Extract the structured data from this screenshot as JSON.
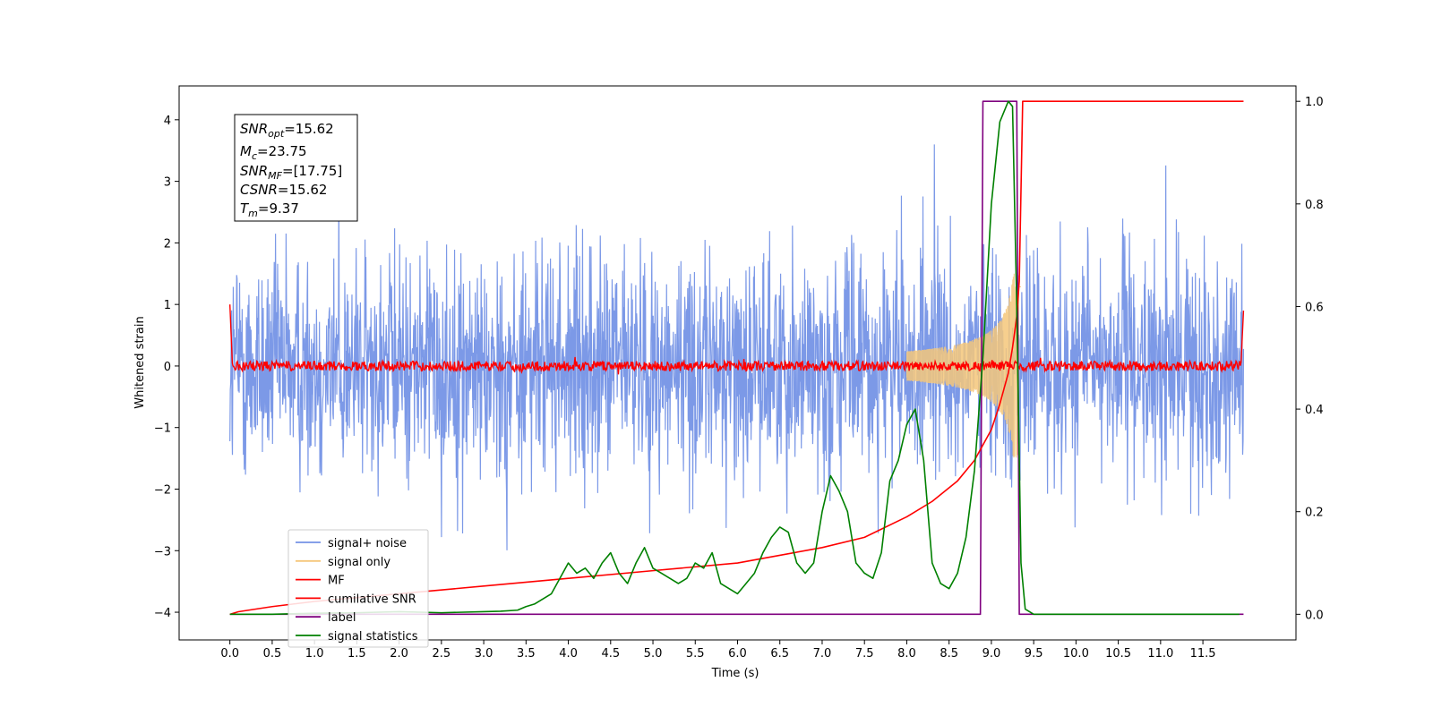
{
  "chart_data": {
    "type": "line",
    "xlabel": "Time (s)",
    "ylabel": "Whitened strain",
    "xlim": [
      -0.6,
      12.6
    ],
    "ylim": [
      -4.45,
      4.55
    ],
    "ylim_right": [
      -0.05,
      1.03
    ],
    "x_ticks": [
      0.0,
      0.5,
      1.0,
      1.5,
      2.0,
      2.5,
      3.0,
      3.5,
      4.0,
      4.5,
      5.0,
      5.5,
      6.0,
      6.5,
      7.0,
      7.5,
      8.0,
      8.5,
      9.0,
      9.5,
      10.0,
      10.5,
      11.0,
      11.5
    ],
    "x_tick_labels": [
      "0.0",
      "0.5",
      "1.0",
      "1.5",
      "2.0",
      "2.5",
      "3.0",
      "3.5",
      "4.0",
      "4.5",
      "5.0",
      "5.5",
      "6.0",
      "6.5",
      "7.0",
      "7.5",
      "8.0",
      "8.5",
      "9.0",
      "9.5",
      "10.0",
      "10.5",
      "11.0",
      "11.5"
    ],
    "y_ticks": [
      4,
      3,
      2,
      1,
      0,
      -1,
      -2,
      -3,
      -4
    ],
    "y_tick_labels": [
      "4",
      "3",
      "2",
      "1",
      "0",
      "−1",
      "−2",
      "−3",
      "−4"
    ],
    "y_right_ticks": [
      1.0,
      0.8,
      0.6,
      0.4,
      0.2,
      0.0
    ],
    "y_right_tick_labels": [
      "1.0",
      "0.8",
      "0.6",
      "0.4",
      "0.2",
      "0.0"
    ],
    "grid": false,
    "legend_position": "bottom-left",
    "info_box": {
      "snr_opt": {
        "base": "SNR",
        "sub": "opt",
        "value": "=15.62"
      },
      "mc": {
        "base": "M",
        "sub": "c",
        "value": "=23.75"
      },
      "snr_mf": {
        "base": "SNR",
        "sub": "MF",
        "value": "=[17.75]"
      },
      "csnr": {
        "base": "CSNR",
        "value": "=15.62"
      },
      "tm": {
        "base": "T",
        "sub": "m",
        "value": "=9.37"
      }
    },
    "series": [
      {
        "name": "signal+ noise",
        "color": "#7593e6",
        "axis": "left",
        "description_level": "noise amplitude about ±2.5, range ≈ −3.5..4.0",
        "merger_time": 9.37
      },
      {
        "name": "signal only",
        "color": "#f5c77a",
        "axis": "left",
        "chirp_start": 8.0,
        "chirp_peak_time": 9.3,
        "peak_amplitude": 1.5
      },
      {
        "name": "MF",
        "color": "#ff0000",
        "axis": "left",
        "baseline": 0.0,
        "edge_value_start": 1.0,
        "edge_value_end": 0.9
      },
      {
        "name": "cumilative SNR",
        "color": "#ff0000",
        "axis": "right",
        "x": [
          0.0,
          0.1,
          0.5,
          1.0,
          2.0,
          3.0,
          4.0,
          5.0,
          6.0,
          6.5,
          7.0,
          7.5,
          8.0,
          8.3,
          8.6,
          8.8,
          9.0,
          9.1,
          9.2,
          9.25,
          9.3,
          9.33,
          9.37,
          9.5,
          11.98
        ],
        "values": [
          0.0,
          0.005,
          0.015,
          0.025,
          0.04,
          0.055,
          0.07,
          0.085,
          0.1,
          0.115,
          0.13,
          0.15,
          0.19,
          0.22,
          0.26,
          0.3,
          0.36,
          0.41,
          0.47,
          0.52,
          0.58,
          0.65,
          1.0,
          1.0,
          1.0
        ]
      },
      {
        "name": "label",
        "color": "#7f007f",
        "axis": "right",
        "x": [
          0.0,
          5.69,
          5.7,
          5.71,
          8.87,
          8.9,
          9.3,
          9.33,
          11.98
        ],
        "values": [
          0.0,
          0.0,
          0.0,
          0.0,
          0.0,
          1.0,
          1.0,
          0.0,
          0.0
        ]
      },
      {
        "name": "signal statistics",
        "color": "#008000",
        "axis": "right",
        "x": [
          0.0,
          0.5,
          1.0,
          1.5,
          2.0,
          2.5,
          3.0,
          3.2,
          3.4,
          3.5,
          3.6,
          3.7,
          3.8,
          3.9,
          4.0,
          4.1,
          4.2,
          4.3,
          4.4,
          4.5,
          4.6,
          4.7,
          4.8,
          4.9,
          5.0,
          5.1,
          5.2,
          5.3,
          5.4,
          5.5,
          5.6,
          5.7,
          5.8,
          5.9,
          6.0,
          6.1,
          6.2,
          6.3,
          6.4,
          6.5,
          6.6,
          6.7,
          6.8,
          6.9,
          7.0,
          7.1,
          7.2,
          7.3,
          7.4,
          7.5,
          7.6,
          7.7,
          7.8,
          7.9,
          8.0,
          8.1,
          8.2,
          8.3,
          8.4,
          8.5,
          8.6,
          8.7,
          8.8,
          8.9,
          9.0,
          9.1,
          9.2,
          9.25,
          9.3,
          9.35,
          9.4,
          9.5,
          11.93
        ],
        "values": [
          0.0,
          0.0,
          0.002,
          0.003,
          0.005,
          0.003,
          0.005,
          0.006,
          0.008,
          0.015,
          0.02,
          0.03,
          0.04,
          0.07,
          0.1,
          0.08,
          0.09,
          0.07,
          0.1,
          0.12,
          0.08,
          0.06,
          0.1,
          0.13,
          0.09,
          0.08,
          0.07,
          0.06,
          0.07,
          0.1,
          0.09,
          0.12,
          0.06,
          0.05,
          0.04,
          0.06,
          0.08,
          0.12,
          0.15,
          0.17,
          0.16,
          0.1,
          0.08,
          0.1,
          0.2,
          0.27,
          0.24,
          0.2,
          0.1,
          0.08,
          0.07,
          0.12,
          0.26,
          0.3,
          0.37,
          0.4,
          0.3,
          0.1,
          0.06,
          0.05,
          0.08,
          0.15,
          0.28,
          0.5,
          0.8,
          0.96,
          1.0,
          0.99,
          0.6,
          0.1,
          0.01,
          0.0,
          0.0
        ]
      }
    ]
  }
}
